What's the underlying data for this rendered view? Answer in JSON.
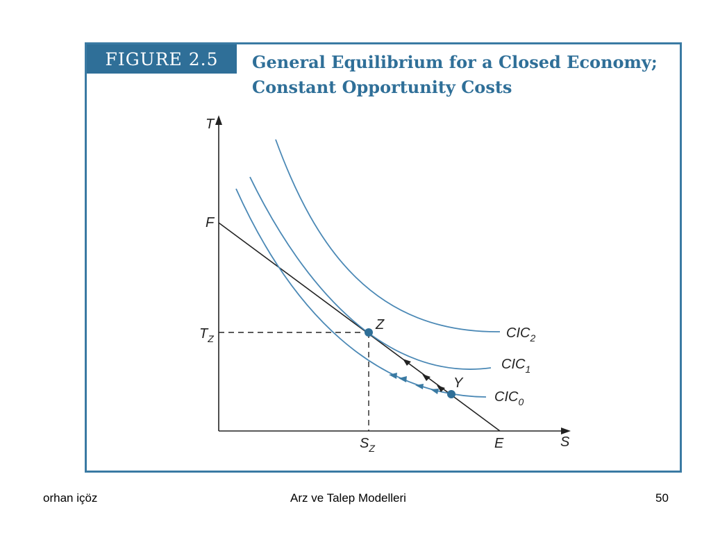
{
  "figure": {
    "badge": "FIGURE 2.5",
    "title_line1": "General Equilibrium for a Closed Economy;",
    "title_line2": "Constant Opportunity Costs"
  },
  "diagram": {
    "axis_y_label": "T",
    "axis_x_label": "S",
    "point_F": "F",
    "point_E": "E",
    "point_Z": "Z",
    "point_Y": "Y",
    "tick_Tz": {
      "main": "T",
      "sub": "Z"
    },
    "tick_Sz": {
      "main": "S",
      "sub": "Z"
    },
    "curves": [
      {
        "main": "CIC",
        "sub": "2"
      },
      {
        "main": "CIC",
        "sub": "1"
      },
      {
        "main": "CIC",
        "sub": "0"
      }
    ],
    "colors": {
      "curve": "#4a88b5",
      "axis": "#222222",
      "frame": "#3a7aa3",
      "point": "#2f6f98"
    }
  },
  "footer": {
    "author": "orhan içöz",
    "title": "Arz ve Talep Modelleri",
    "page": "50"
  }
}
